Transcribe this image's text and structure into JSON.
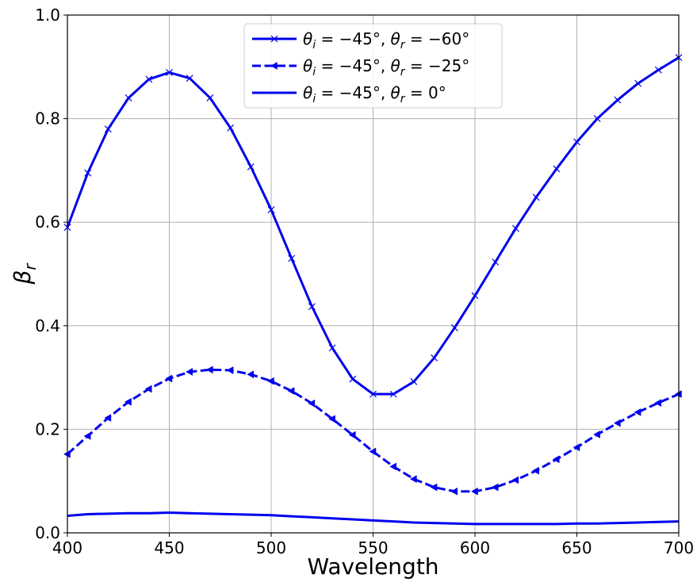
{
  "chart_data": {
    "type": "line",
    "xlabel": "Wavelength",
    "ylabel": "β",
    "ylabel_sub": "r",
    "xlim": [
      400,
      700
    ],
    "ylim": [
      0.0,
      1.0
    ],
    "xticks": [
      "400",
      "450",
      "500",
      "550",
      "600",
      "650",
      "700"
    ],
    "yticks": [
      "0.0",
      "0.2",
      "0.4",
      "0.6",
      "0.8",
      "1.0"
    ],
    "grid": true,
    "legend_position": "top-center",
    "x": [
      400,
      410,
      420,
      430,
      440,
      450,
      460,
      470,
      480,
      490,
      500,
      510,
      520,
      530,
      540,
      550,
      560,
      570,
      580,
      590,
      600,
      610,
      620,
      630,
      640,
      650,
      660,
      670,
      680,
      690,
      700
    ],
    "series": [
      {
        "name": "θi = −45°, θr = −60°",
        "legend": {
          "a": "θ",
          "as": "i",
          "b": " = −45°, ",
          "c": "θ",
          "cs": "r",
          "d": " = −60°"
        },
        "color": "#0000ee",
        "dash": "solid",
        "marker": "x",
        "values": [
          0.59,
          0.695,
          0.78,
          0.84,
          0.876,
          0.889,
          0.878,
          0.84,
          0.782,
          0.707,
          0.624,
          0.53,
          0.437,
          0.357,
          0.297,
          0.268,
          0.268,
          0.292,
          0.338,
          0.396,
          0.458,
          0.523,
          0.588,
          0.648,
          0.703,
          0.755,
          0.8,
          0.836,
          0.868,
          0.894,
          0.918
        ]
      },
      {
        "name": "θi = −45°, θr = −25°",
        "legend": {
          "a": "θ",
          "as": "i",
          "b": " = −45°, ",
          "c": "θ",
          "cs": "r",
          "d": " = −25°"
        },
        "color": "#0000ee",
        "dash": "dashed",
        "marker": "triangle-left",
        "values": [
          0.152,
          0.187,
          0.222,
          0.253,
          0.278,
          0.298,
          0.311,
          0.315,
          0.314,
          0.306,
          0.293,
          0.274,
          0.25,
          0.22,
          0.189,
          0.157,
          0.128,
          0.104,
          0.088,
          0.08,
          0.08,
          0.088,
          0.102,
          0.12,
          0.142,
          0.165,
          0.19,
          0.212,
          0.233,
          0.251,
          0.268
        ]
      },
      {
        "name": "θi = −45°, θr = 0°",
        "legend": {
          "a": "θ",
          "as": "i",
          "b": " = −45°, ",
          "c": "θ",
          "cs": "r",
          "d": " = 0°"
        },
        "color": "#0000ee",
        "dash": "solid",
        "marker": "none",
        "values": [
          0.033,
          0.036,
          0.037,
          0.038,
          0.038,
          0.039,
          0.038,
          0.037,
          0.036,
          0.035,
          0.034,
          0.032,
          0.03,
          0.028,
          0.026,
          0.024,
          0.022,
          0.02,
          0.019,
          0.018,
          0.017,
          0.017,
          0.017,
          0.017,
          0.017,
          0.018,
          0.018,
          0.019,
          0.02,
          0.021,
          0.022
        ]
      }
    ]
  }
}
